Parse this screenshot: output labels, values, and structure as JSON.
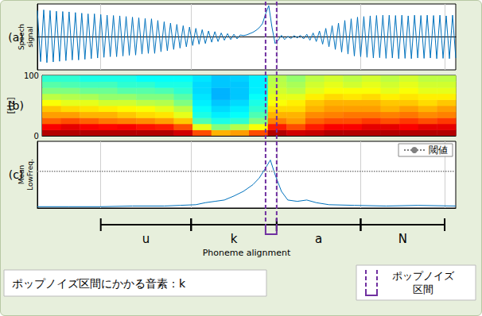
{
  "chart_data": [
    {
      "type": "line",
      "title": "(a)",
      "ylabel": "Speech\nsignal",
      "color": "#0072bd",
      "xlim": [
        0,
        264
      ],
      "ylim": [
        -1,
        1
      ],
      "xticks": [
        40,
        97,
        151,
        204,
        257
      ],
      "grid": "x",
      "tick_labels": false,
      "x": [
        0,
        2,
        4,
        6,
        8,
        10,
        12,
        14,
        16,
        18,
        20,
        22,
        24,
        26,
        28,
        30,
        32,
        34,
        36,
        38,
        40,
        42,
        44,
        46,
        48,
        50,
        52,
        54,
        56,
        58,
        60,
        62,
        64,
        66,
        68,
        70,
        72,
        74,
        76,
        78,
        80,
        82,
        84,
        86,
        88,
        90,
        92,
        94,
        96,
        98,
        100,
        102,
        104,
        106,
        108,
        110,
        112,
        114,
        116,
        118,
        120,
        122,
        124,
        126,
        128,
        130,
        132,
        134,
        136,
        138,
        140,
        142,
        144,
        146,
        148,
        150,
        152,
        154,
        156,
        158,
        160,
        162,
        164,
        166,
        168,
        170,
        172,
        174,
        176,
        178,
        180,
        182,
        184,
        186,
        188,
        190,
        192,
        194,
        196,
        198,
        200,
        202,
        204,
        206,
        208,
        210,
        212,
        214,
        216,
        218,
        220,
        222,
        224,
        226,
        228,
        230,
        232,
        234,
        236,
        238,
        240,
        242,
        244,
        246,
        248,
        250,
        252,
        254,
        256,
        258,
        260,
        262,
        264
      ],
      "values": [
        0.8,
        -0.75,
        0.82,
        -0.78,
        0.8,
        -0.76,
        0.78,
        -0.74,
        0.77,
        -0.72,
        0.76,
        -0.7,
        0.74,
        -0.7,
        0.72,
        -0.68,
        0.7,
        -0.66,
        0.7,
        -0.64,
        0.68,
        -0.62,
        0.66,
        -0.6,
        0.65,
        -0.6,
        0.64,
        -0.58,
        0.62,
        -0.56,
        0.6,
        -0.55,
        0.58,
        -0.52,
        0.56,
        -0.5,
        0.55,
        -0.5,
        0.5,
        -0.45,
        0.46,
        -0.42,
        0.42,
        -0.38,
        0.38,
        -0.34,
        0.34,
        -0.3,
        0.3,
        -0.26,
        0.26,
        -0.22,
        0.22,
        -0.2,
        0.18,
        -0.16,
        0.16,
        -0.14,
        0.12,
        -0.1,
        0.1,
        -0.08,
        0.08,
        -0.06,
        0.06,
        0.04,
        0.06,
        0.1,
        0.14,
        0.2,
        0.28,
        0.4,
        0.7,
        0.95,
        0.3,
        -0.2,
        -0.1,
        0.05,
        -0.08,
        0.02,
        -0.05,
        0.04,
        -0.03,
        0.05,
        -0.06,
        0.08,
        -0.1,
        0.12,
        -0.14,
        0.18,
        -0.22,
        0.26,
        -0.3,
        0.34,
        -0.38,
        0.42,
        -0.46,
        0.5,
        -0.52,
        0.55,
        -0.58,
        0.6,
        -0.6,
        0.62,
        -0.62,
        0.64,
        -0.64,
        0.65,
        -0.63,
        0.66,
        -0.65,
        0.66,
        -0.64,
        0.65,
        -0.66,
        0.66,
        -0.65,
        0.64,
        -0.66,
        0.66,
        -0.64,
        0.65,
        -0.65,
        0.66,
        -0.64,
        0.65,
        -0.66,
        0.66,
        -0.65,
        0.64,
        -0.66,
        0.66,
        -0.64
      ]
    },
    {
      "type": "heatmap",
      "title": "(b)",
      "ylabel": "[Hz]",
      "xlim": [
        0,
        264
      ],
      "ylim": [
        0,
        100
      ],
      "yticks": [
        0,
        100
      ],
      "grid": false,
      "tick_labels": "y",
      "zlim": [
        0,
        1
      ],
      "x_bins": [
        0,
        12,
        24,
        36,
        48,
        60,
        72,
        84,
        96,
        108,
        120,
        132,
        144,
        156,
        168,
        180,
        192,
        204,
        216,
        228,
        240,
        252,
        264
      ],
      "y_bins": [
        0,
        10,
        20,
        30,
        40,
        50,
        60,
        70,
        80,
        90,
        100
      ],
      "cells": [
        [
          0.95,
          0.95,
          0.95,
          0.95,
          0.95,
          0.95,
          0.95,
          0.92,
          0.8,
          0.7,
          0.72,
          0.8,
          0.95,
          0.92,
          0.93,
          0.95,
          0.95,
          0.95,
          0.95,
          0.95,
          0.95,
          0.95
        ],
        [
          0.88,
          0.9,
          0.88,
          0.87,
          0.88,
          0.86,
          0.85,
          0.8,
          0.6,
          0.5,
          0.55,
          0.62,
          0.85,
          0.8,
          0.85,
          0.88,
          0.88,
          0.9,
          0.9,
          0.88,
          0.9,
          0.9
        ],
        [
          0.78,
          0.8,
          0.78,
          0.76,
          0.75,
          0.74,
          0.72,
          0.68,
          0.45,
          0.4,
          0.42,
          0.5,
          0.75,
          0.72,
          0.78,
          0.8,
          0.8,
          0.82,
          0.8,
          0.82,
          0.8,
          0.82
        ],
        [
          0.72,
          0.72,
          0.7,
          0.7,
          0.68,
          0.66,
          0.65,
          0.6,
          0.4,
          0.36,
          0.38,
          0.45,
          0.7,
          0.7,
          0.74,
          0.75,
          0.76,
          0.76,
          0.75,
          0.76,
          0.74,
          0.75
        ],
        [
          0.68,
          0.66,
          0.65,
          0.64,
          0.63,
          0.62,
          0.6,
          0.56,
          0.38,
          0.34,
          0.36,
          0.42,
          0.66,
          0.66,
          0.7,
          0.72,
          0.72,
          0.72,
          0.7,
          0.72,
          0.7,
          0.72
        ],
        [
          0.62,
          0.6,
          0.6,
          0.58,
          0.58,
          0.56,
          0.55,
          0.5,
          0.36,
          0.32,
          0.34,
          0.4,
          0.62,
          0.64,
          0.68,
          0.7,
          0.7,
          0.7,
          0.68,
          0.68,
          0.66,
          0.68
        ],
        [
          0.56,
          0.55,
          0.54,
          0.52,
          0.52,
          0.5,
          0.5,
          0.46,
          0.35,
          0.3,
          0.32,
          0.38,
          0.6,
          0.6,
          0.64,
          0.66,
          0.65,
          0.66,
          0.64,
          0.65,
          0.64,
          0.64
        ],
        [
          0.5,
          0.5,
          0.48,
          0.48,
          0.46,
          0.46,
          0.45,
          0.42,
          0.34,
          0.3,
          0.32,
          0.36,
          0.58,
          0.56,
          0.6,
          0.62,
          0.62,
          0.62,
          0.6,
          0.62,
          0.6,
          0.6
        ],
        [
          0.46,
          0.45,
          0.44,
          0.44,
          0.42,
          0.42,
          0.4,
          0.4,
          0.34,
          0.32,
          0.32,
          0.36,
          0.56,
          0.54,
          0.58,
          0.6,
          0.58,
          0.6,
          0.58,
          0.6,
          0.58,
          0.58
        ],
        [
          0.42,
          0.42,
          0.4,
          0.4,
          0.4,
          0.38,
          0.38,
          0.38,
          0.35,
          0.32,
          0.33,
          0.36,
          0.55,
          0.52,
          0.56,
          0.58,
          0.56,
          0.58,
          0.56,
          0.58,
          0.56,
          0.56
        ]
      ]
    },
    {
      "type": "line",
      "title": "(c)",
      "ylabel": "Mean\nLowFreq.",
      "color": "#0072bd",
      "xlim": [
        0,
        264
      ],
      "ylim": [
        0,
        1
      ],
      "xticks": [
        40,
        97,
        151,
        204,
        257
      ],
      "grid": "x",
      "tick_labels": false,
      "legend": "upper right",
      "x": [
        0,
        20,
        40,
        60,
        80,
        90,
        100,
        106,
        112,
        118,
        124,
        130,
        136,
        140,
        144,
        147,
        150,
        154,
        158,
        164,
        170,
        176,
        184,
        200,
        220,
        240,
        264
      ],
      "values": [
        0.02,
        0.02,
        0.02,
        0.03,
        0.03,
        0.04,
        0.05,
        0.08,
        0.1,
        0.12,
        0.18,
        0.25,
        0.35,
        0.45,
        0.6,
        0.72,
        0.5,
        0.25,
        0.12,
        0.1,
        0.12,
        0.08,
        0.05,
        0.04,
        0.03,
        0.04,
        0.03
      ],
      "threshold": {
        "label": "閾値",
        "value": 0.55,
        "color": "#808080",
        "line_style": "dotted"
      }
    },
    {
      "type": "segments",
      "xlabel": "Phoneme alignment",
      "xlim": [
        0,
        264
      ],
      "tick_labels": false,
      "segments": [
        {
          "label": "u",
          "start": 40,
          "end": 97
        },
        {
          "label": "k",
          "start": 97,
          "end": 151
        },
        {
          "label": "a",
          "start": 151,
          "end": 204
        },
        {
          "label": "N",
          "start": 204,
          "end": 257
        }
      ]
    }
  ],
  "pop_noise": {
    "start": 144,
    "end": 151,
    "color": "#7030a0",
    "line_style": "dashed",
    "label": "ポップノイズ\n区間"
  },
  "caption": "ポップノイズ区間にかかる音素：k"
}
